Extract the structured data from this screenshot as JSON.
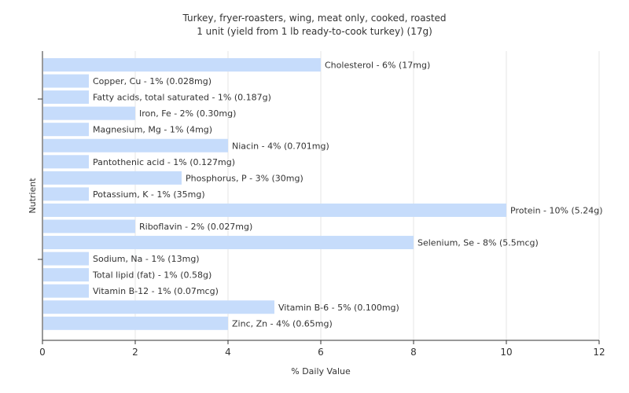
{
  "chart_data": {
    "type": "bar",
    "orientation": "horizontal",
    "title": "Turkey, fryer-roasters, wing, meat only, cooked, roasted",
    "subtitle": "1 unit (yield from 1 lb ready-to-cook turkey) (17g)",
    "xlabel": "% Daily Value",
    "ylabel": "Nutrient",
    "xlim": [
      0,
      12
    ],
    "xticks": [
      0,
      2,
      4,
      6,
      8,
      10,
      12
    ],
    "grid": true,
    "bar_color": "#c6dcfb",
    "categories": [
      "Cholesterol",
      "Copper, Cu",
      "Fatty acids, total saturated",
      "Iron, Fe",
      "Magnesium, Mg",
      "Niacin",
      "Pantothenic acid",
      "Phosphorus, P",
      "Potassium, K",
      "Protein",
      "Riboflavin",
      "Selenium, Se",
      "Sodium, Na",
      "Total lipid (fat)",
      "Vitamin B-12",
      "Vitamin B-6",
      "Zinc, Zn"
    ],
    "values": [
      6,
      1,
      1,
      2,
      1,
      4,
      1,
      3,
      1,
      10,
      2,
      8,
      1,
      1,
      1,
      5,
      4
    ],
    "labels": [
      "Cholesterol - 6% (17mg)",
      "Copper, Cu - 1% (0.028mg)",
      "Fatty acids, total saturated - 1% (0.187g)",
      "Iron, Fe - 2% (0.30mg)",
      "Magnesium, Mg - 1% (4mg)",
      "Niacin - 4% (0.701mg)",
      "Pantothenic acid - 1% (0.127mg)",
      "Phosphorus, P - 3% (30mg)",
      "Potassium, K - 1% (35mg)",
      "Protein - 10% (5.24g)",
      "Riboflavin - 2% (0.027mg)",
      "Selenium, Se - 8% (5.5mcg)",
      "Sodium, Na - 1% (13mg)",
      "Total lipid (fat) - 1% (0.58g)",
      "Vitamin B-12 - 1% (0.07mcg)",
      "Vitamin B-6 - 5% (0.100mg)",
      "Zinc, Zn - 4% (0.65mg)"
    ]
  }
}
